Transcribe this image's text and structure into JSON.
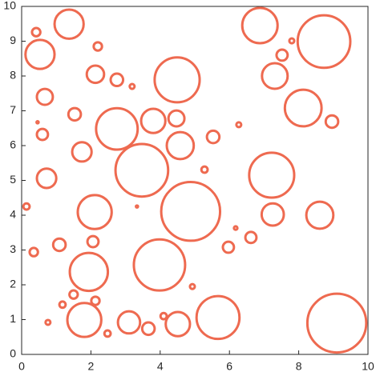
{
  "chart_data": {
    "type": "circles",
    "color": "#ee6a50",
    "xlim": [
      0,
      10
    ],
    "ylim": [
      0,
      10
    ],
    "xticks": [
      0,
      2,
      4,
      6,
      8,
      10
    ],
    "yticks": [
      0,
      1,
      2,
      3,
      4,
      5,
      6,
      7,
      8,
      9,
      10
    ],
    "x": [
      1.37,
      0.42,
      0.53,
      2.2,
      6.88,
      8.73,
      7.8,
      7.52,
      7.31,
      2.13,
      2.75,
      3.19,
      4.49,
      0.67,
      8.13,
      1.53,
      2.75,
      3.8,
      4.47,
      0.46,
      6.27,
      8.96,
      0.6,
      5.53,
      4.58,
      1.74,
      3.47,
      5.28,
      7.22,
      0.72,
      0.14,
      2.11,
      3.33,
      4.88,
      7.25,
      8.61,
      6.18,
      6.62,
      5.97,
      1.09,
      2.06,
      0.35,
      3.98,
      1.94,
      4.93,
      1.5,
      2.13,
      1.18,
      1.81,
      0.76,
      3.1,
      3.66,
      4.1,
      4.51,
      5.67,
      2.48,
      9.1
    ],
    "y": [
      9.49,
      9.26,
      8.62,
      8.85,
      9.45,
      8.99,
      9.01,
      8.6,
      8.0,
      8.05,
      7.89,
      7.7,
      7.89,
      7.4,
      7.08,
      6.9,
      6.48,
      6.71,
      6.78,
      6.67,
      6.6,
      6.69,
      6.32,
      6.25,
      6.0,
      5.82,
      5.29,
      5.31,
      5.15,
      5.06,
      4.25,
      4.09,
      4.25,
      4.11,
      4.02,
      4.0,
      3.63,
      3.36,
      3.08,
      3.15,
      3.24,
      2.94,
      2.57,
      2.37,
      1.95,
      1.72,
      1.54,
      1.43,
      0.99,
      0.92,
      0.92,
      0.74,
      1.1,
      0.87,
      1.06,
      0.6,
      0.9
    ],
    "radius": [
      0.42,
      0.12,
      0.42,
      0.12,
      0.51,
      0.76,
      0.07,
      0.16,
      0.37,
      0.25,
      0.18,
      0.07,
      0.65,
      0.23,
      0.53,
      0.18,
      0.6,
      0.35,
      0.23,
      0.03,
      0.07,
      0.18,
      0.16,
      0.18,
      0.39,
      0.28,
      0.76,
      0.09,
      0.65,
      0.28,
      0.09,
      0.49,
      0.03,
      0.85,
      0.32,
      0.39,
      0.05,
      0.16,
      0.16,
      0.18,
      0.16,
      0.12,
      0.74,
      0.55,
      0.07,
      0.12,
      0.12,
      0.09,
      0.49,
      0.07,
      0.32,
      0.18,
      0.09,
      0.35,
      0.62,
      0.09,
      0.85
    ]
  }
}
